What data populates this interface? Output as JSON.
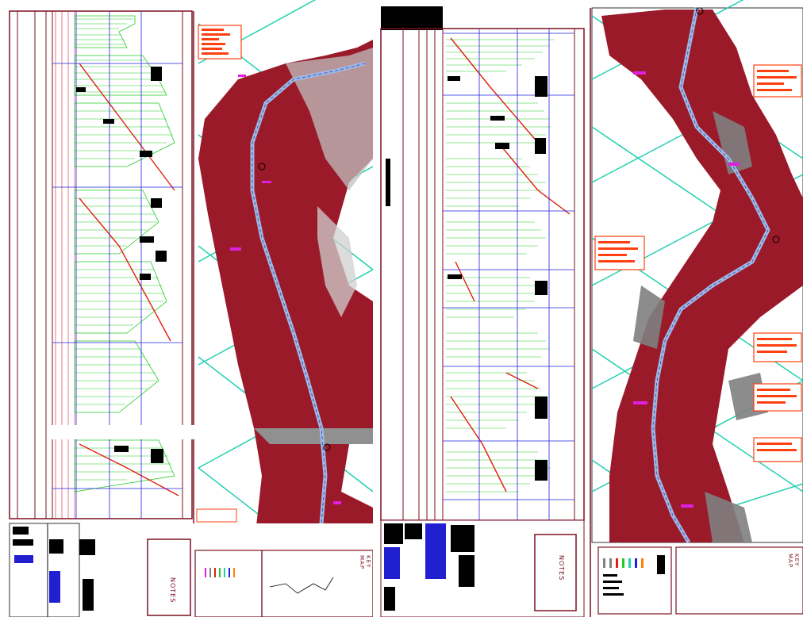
{
  "drawing": {
    "left_sheet": {
      "notes_label": "NOTES",
      "key_map_label": "KEY MAP"
    },
    "right_sheet": {
      "notes_label": "NOTES",
      "key_map_label": "KEY MAP"
    }
  },
  "colors": {
    "frame": "#7a1020",
    "profile_fill": "#22cc22",
    "profile_line": "#e02010",
    "station_line": "#2020e0",
    "terrain": "#9a1a2a",
    "terrain_gray": "#808080",
    "grid": "#20d0b0",
    "road": "#a0b8e0",
    "annotation_box": "#ff4010",
    "magenta": "#e020e0"
  },
  "icons": {
    "compass": "north-arrow-icon",
    "legend": "legend-swatches-icon"
  }
}
